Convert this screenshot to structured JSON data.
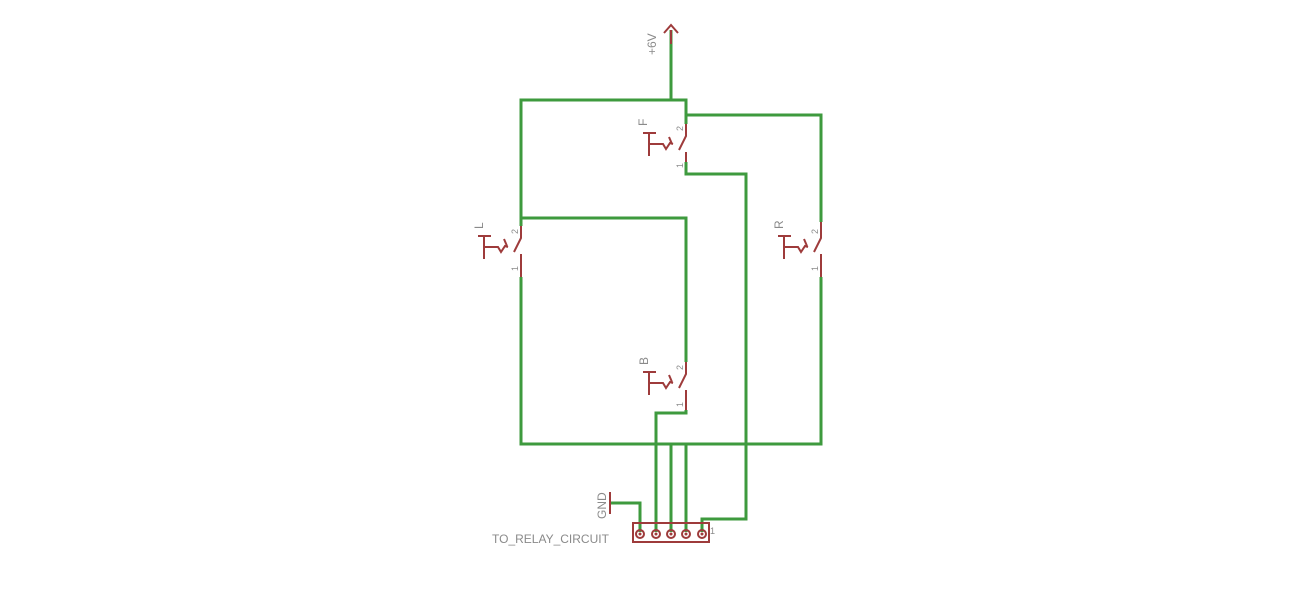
{
  "schematic": {
    "supply_label": "+6V",
    "gnd_label": "GND",
    "connector_label": "TO_RELAY_CIRCUIT",
    "connector_pin1": "1",
    "switches": [
      {
        "name": "F",
        "pin_top": "2",
        "pin_bottom": "1"
      },
      {
        "name": "L",
        "pin_top": "2",
        "pin_bottom": "1"
      },
      {
        "name": "R",
        "pin_top": "2",
        "pin_bottom": "1"
      },
      {
        "name": "B",
        "pin_top": "2",
        "pin_bottom": "1"
      }
    ]
  },
  "colors": {
    "wire": "#3e9a3e",
    "symbol": "#9e3b3b",
    "label": "#8a8a8a",
    "background": "#ffffff"
  }
}
